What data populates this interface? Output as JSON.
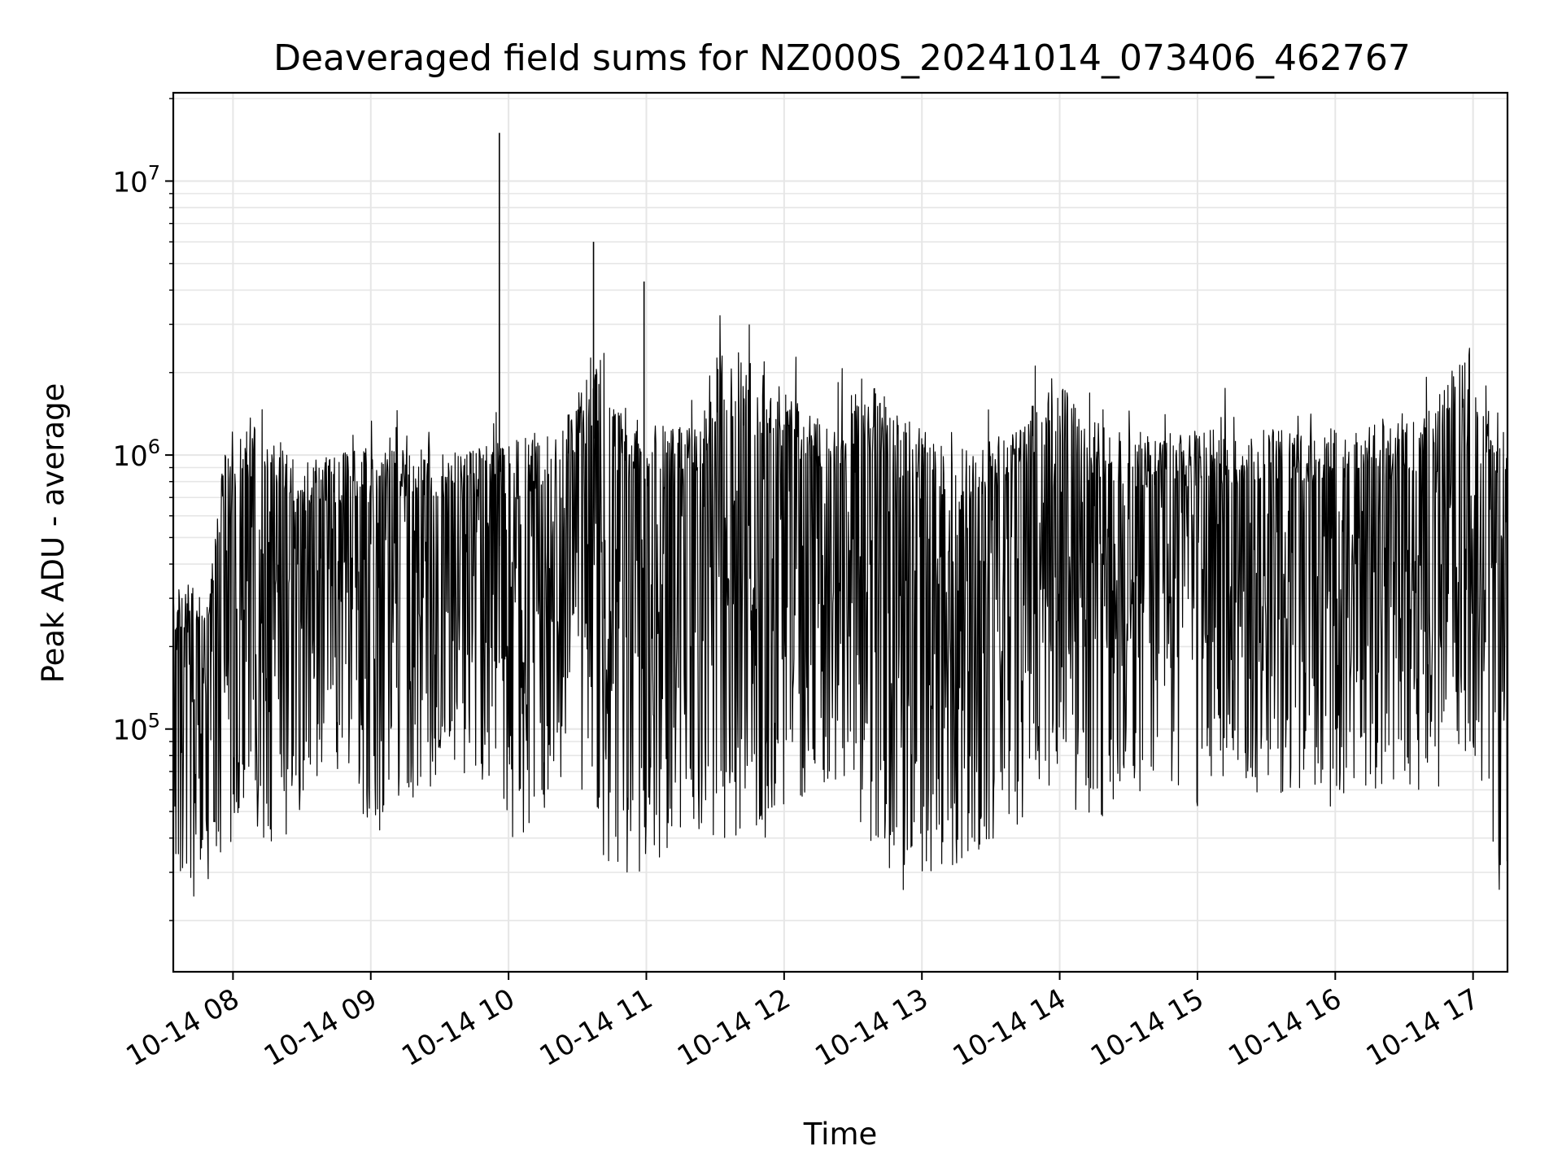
{
  "chart_data": {
    "type": "line",
    "title": "Deaveraged field sums for NZ000S_20241014_073406_462767",
    "xlabel": "Time",
    "ylabel": "Peak ADU - average",
    "yscale": "log",
    "xlim": [
      "2024-10-14T07:34",
      "2024-10-14T17:15"
    ],
    "ylim": [
      13000,
      21000000
    ],
    "x_ticks": [
      "10-14 08",
      "10-14 09",
      "10-14 10",
      "10-14 11",
      "10-14 12",
      "10-14 13",
      "10-14 14",
      "10-14 15",
      "10-14 16",
      "10-14 17"
    ],
    "x_tick_times": [
      "2024-10-14T08:00",
      "2024-10-14T09:00",
      "2024-10-14T10:00",
      "2024-10-14T11:00",
      "2024-10-14T12:00",
      "2024-10-14T13:00",
      "2024-10-14T14:00",
      "2024-10-14T15:00",
      "2024-10-14T16:00",
      "2024-10-14T17:00"
    ],
    "y_ticks": [
      {
        "base": "10",
        "exp": "5",
        "value": 100000
      },
      {
        "base": "10",
        "exp": "6",
        "value": 1000000
      },
      {
        "base": "10",
        "exp": "7",
        "value": 10000000
      }
    ],
    "grid": true,
    "line_color": "#000000",
    "grid_color": "#e6e6e6",
    "series": [
      {
        "x": [
          "2024-10-14T07:34",
          "2024-10-14T07:38",
          "2024-10-14T07:42",
          "2024-10-14T07:45",
          "2024-10-14T07:49",
          "2024-10-14T07:52",
          "2024-10-14T07:55",
          "2024-10-14T07:58",
          "2024-10-14T08:01",
          "2024-10-14T08:05",
          "2024-10-14T08:10",
          "2024-10-14T08:15",
          "2024-10-14T08:20",
          "2024-10-14T08:25",
          "2024-10-14T08:30",
          "2024-10-14T08:35",
          "2024-10-14T08:40",
          "2024-10-14T08:45",
          "2024-10-14T08:50",
          "2024-10-14T08:55",
          "2024-10-14T09:00",
          "2024-10-14T09:05",
          "2024-10-14T09:10",
          "2024-10-14T09:15",
          "2024-10-14T09:20",
          "2024-10-14T09:25",
          "2024-10-14T09:30",
          "2024-10-14T09:35",
          "2024-10-14T09:40",
          "2024-10-14T09:45",
          "2024-10-14T09:50",
          "2024-10-14T09:55",
          "2024-10-14T10:00",
          "2024-10-14T10:05",
          "2024-10-14T10:10",
          "2024-10-14T10:15",
          "2024-10-14T10:20",
          "2024-10-14T10:25",
          "2024-10-14T10:30",
          "2024-10-14T10:35",
          "2024-10-14T10:40",
          "2024-10-14T10:45",
          "2024-10-14T10:50",
          "2024-10-14T10:55",
          "2024-10-14T11:00",
          "2024-10-14T11:05",
          "2024-10-14T11:10",
          "2024-10-14T11:15",
          "2024-10-14T11:20",
          "2024-10-14T11:25",
          "2024-10-14T11:30",
          "2024-10-14T11:35",
          "2024-10-14T11:40",
          "2024-10-14T11:45",
          "2024-10-14T11:50",
          "2024-10-14T11:55",
          "2024-10-14T12:00",
          "2024-10-14T12:05",
          "2024-10-14T12:10",
          "2024-10-14T12:15",
          "2024-10-14T12:20",
          "2024-10-14T12:25",
          "2024-10-14T12:30",
          "2024-10-14T12:35",
          "2024-10-14T12:40",
          "2024-10-14T12:45",
          "2024-10-14T12:50",
          "2024-10-14T12:55",
          "2024-10-14T13:00",
          "2024-10-14T13:05",
          "2024-10-14T13:10",
          "2024-10-14T13:15",
          "2024-10-14T13:20",
          "2024-10-14T13:25",
          "2024-10-14T13:30",
          "2024-10-14T13:35",
          "2024-10-14T13:40",
          "2024-10-14T13:45",
          "2024-10-14T13:50",
          "2024-10-14T13:55",
          "2024-10-14T14:00",
          "2024-10-14T14:05",
          "2024-10-14T14:10",
          "2024-10-14T14:15",
          "2024-10-14T14:20",
          "2024-10-14T14:25",
          "2024-10-14T14:30",
          "2024-10-14T14:35",
          "2024-10-14T14:40",
          "2024-10-14T14:45",
          "2024-10-14T14:50",
          "2024-10-14T14:55",
          "2024-10-14T15:00",
          "2024-10-14T15:05",
          "2024-10-14T15:10",
          "2024-10-14T15:15",
          "2024-10-14T15:20",
          "2024-10-14T15:25",
          "2024-10-14T15:30",
          "2024-10-14T15:35",
          "2024-10-14T15:40",
          "2024-10-14T15:45",
          "2024-10-14T15:50",
          "2024-10-14T15:55",
          "2024-10-14T16:00",
          "2024-10-14T16:05",
          "2024-10-14T16:10",
          "2024-10-14T16:15",
          "2024-10-14T16:20",
          "2024-10-14T16:25",
          "2024-10-14T16:30",
          "2024-10-14T16:35",
          "2024-10-14T16:40",
          "2024-10-14T16:45",
          "2024-10-14T16:50",
          "2024-10-14T16:55",
          "2024-10-14T17:00",
          "2024-10-14T17:03",
          "2024-10-14T17:06",
          "2024-10-14T17:09",
          "2024-10-14T17:12",
          "2024-10-14T17:15"
        ],
        "values": [
          30000,
          38000,
          30000,
          45000,
          80000,
          200000,
          700000,
          1200000,
          900000,
          500000,
          200000,
          500000,
          150000,
          450000,
          120000,
          400000,
          180000,
          350000,
          250000,
          400000,
          300000,
          380000,
          200000,
          500000,
          350000,
          450000,
          300000,
          400000,
          350000,
          450000,
          300000,
          500000,
          350000,
          400000,
          300000,
          550000,
          450000,
          700000,
          900000,
          2000000,
          500000,
          600000,
          150000,
          500000,
          100000,
          450000,
          120000,
          400000,
          150000,
          500000,
          1200000,
          500000,
          400000,
          450000,
          300000,
          500000,
          350000,
          600000,
          500000,
          700000,
          650000,
          900000,
          450000,
          500000,
          300000,
          550000,
          250000,
          450000,
          200000,
          500000,
          350000,
          450000,
          400000,
          500000,
          450000,
          600000,
          800000,
          500000,
          250000,
          700000,
          900000,
          300000,
          800000,
          250000,
          800000,
          300000,
          850000,
          350000,
          900000,
          300000,
          900000,
          350000,
          850000,
          300000,
          900000,
          350000,
          950000,
          300000,
          900000,
          400000,
          950000,
          300000,
          900000,
          350000,
          900000,
          400000,
          950000,
          350000,
          900000,
          400000,
          950000,
          400000,
          900000,
          600000,
          800000,
          1300000,
          900000,
          250000,
          80000,
          50000,
          40000,
          25000
        ]
      },
      {
        "x": [
          "2024-10-14T07:34",
          "2024-10-14T07:36",
          "2024-10-14T07:40",
          "2024-10-14T08:08",
          "2024-10-14T08:20",
          "2024-10-14T08:28",
          "2024-10-14T08:40",
          "2024-10-14T08:50",
          "2024-10-14T09:05",
          "2024-10-14T09:14",
          "2024-10-14T09:22",
          "2024-10-14T09:30",
          "2024-10-14T09:44",
          "2024-10-14T09:54",
          "2024-10-14T10:04",
          "2024-10-14T10:22",
          "2024-10-14T10:48",
          "2024-10-14T10:52",
          "2024-10-14T10:56",
          "2024-10-14T11:04",
          "2024-10-14T11:12",
          "2024-10-14T11:20",
          "2024-10-14T11:32",
          "2024-10-14T11:44",
          "2024-10-14T11:55",
          "2024-10-14T12:05",
          "2024-10-14T12:15",
          "2024-10-14T12:30",
          "2024-10-14T12:45",
          "2024-10-14T12:58",
          "2024-10-14T13:10",
          "2024-10-14T13:22",
          "2024-10-14T13:35",
          "2024-10-14T13:48",
          "2024-10-14T14:00",
          "2024-10-14T14:12",
          "2024-10-14T14:25",
          "2024-10-14T14:38",
          "2024-10-14T14:50",
          "2024-10-14T15:03",
          "2024-10-14T15:15",
          "2024-10-14T15:28",
          "2024-10-14T15:40",
          "2024-10-14T15:52",
          "2024-10-14T16:05",
          "2024-10-14T16:18",
          "2024-10-14T16:30",
          "2024-10-14T16:42",
          "2024-10-14T16:55",
          "2024-10-14T17:05",
          "2024-10-14T17:10",
          "2024-10-14T17:13"
        ],
        "values": [
          22000,
          25000,
          20000,
          45000,
          35000,
          50000,
          60000,
          55000,
          40000,
          60000,
          50000,
          70000,
          65000,
          60000,
          35000,
          60000,
          26000,
          30000,
          27000,
          35000,
          28000,
          35000,
          40000,
          32000,
          40000,
          45000,
          55000,
          50000,
          30000,
          21000,
          30000,
          35000,
          40000,
          50000,
          60000,
          45000,
          50000,
          55000,
          60000,
          50000,
          55000,
          55000,
          60000,
          50000,
          55000,
          60000,
          50000,
          55000,
          80000,
          50000,
          30000,
          21000
        ]
      },
      {
        "x": [
          "2024-10-14T07:50",
          "2024-10-14T07:57",
          "2024-10-14T08:13",
          "2024-10-14T08:27",
          "2024-10-14T09:06",
          "2024-10-14T09:40",
          "2024-10-14T09:55",
          "2024-10-14T10:21",
          "2024-10-14T10:25",
          "2024-10-14T10:36",
          "2024-10-14T10:42",
          "2024-10-14T10:44",
          "2024-10-14T11:00",
          "2024-10-14T11:23",
          "2024-10-14T11:30",
          "2024-10-14T11:33",
          "2024-10-14T12:20",
          "2024-10-14T12:33",
          "2024-10-14T13:12",
          "2024-10-14T13:42",
          "2024-10-14T13:58",
          "2024-10-14T14:10",
          "2024-10-14T14:40",
          "2024-10-14T15:30",
          "2024-10-14T16:00",
          "2024-10-14T16:35",
          "2024-10-14T17:00",
          "2024-10-14T17:02"
        ],
        "values": [
          400000,
          1400000,
          1750000,
          1100000,
          1300000,
          1200000,
          1300000,
          1500000,
          1700000,
          2500000,
          3000000,
          2000000,
          1500000,
          1600000,
          2800000,
          3200000,
          1500000,
          2300000,
          1200000,
          1500000,
          2350000,
          1600000,
          1400000,
          1500000,
          1500000,
          1550000,
          3200000,
          1700000
        ]
      }
    ],
    "annotations": {
      "spikes": [
        {
          "x": "2024-10-14T09:56",
          "value": 15000000
        },
        {
          "x": "2024-10-14T10:37",
          "value": 6000000
        },
        {
          "x": "2024-10-14T10:59",
          "value": 4300000
        }
      ]
    }
  }
}
